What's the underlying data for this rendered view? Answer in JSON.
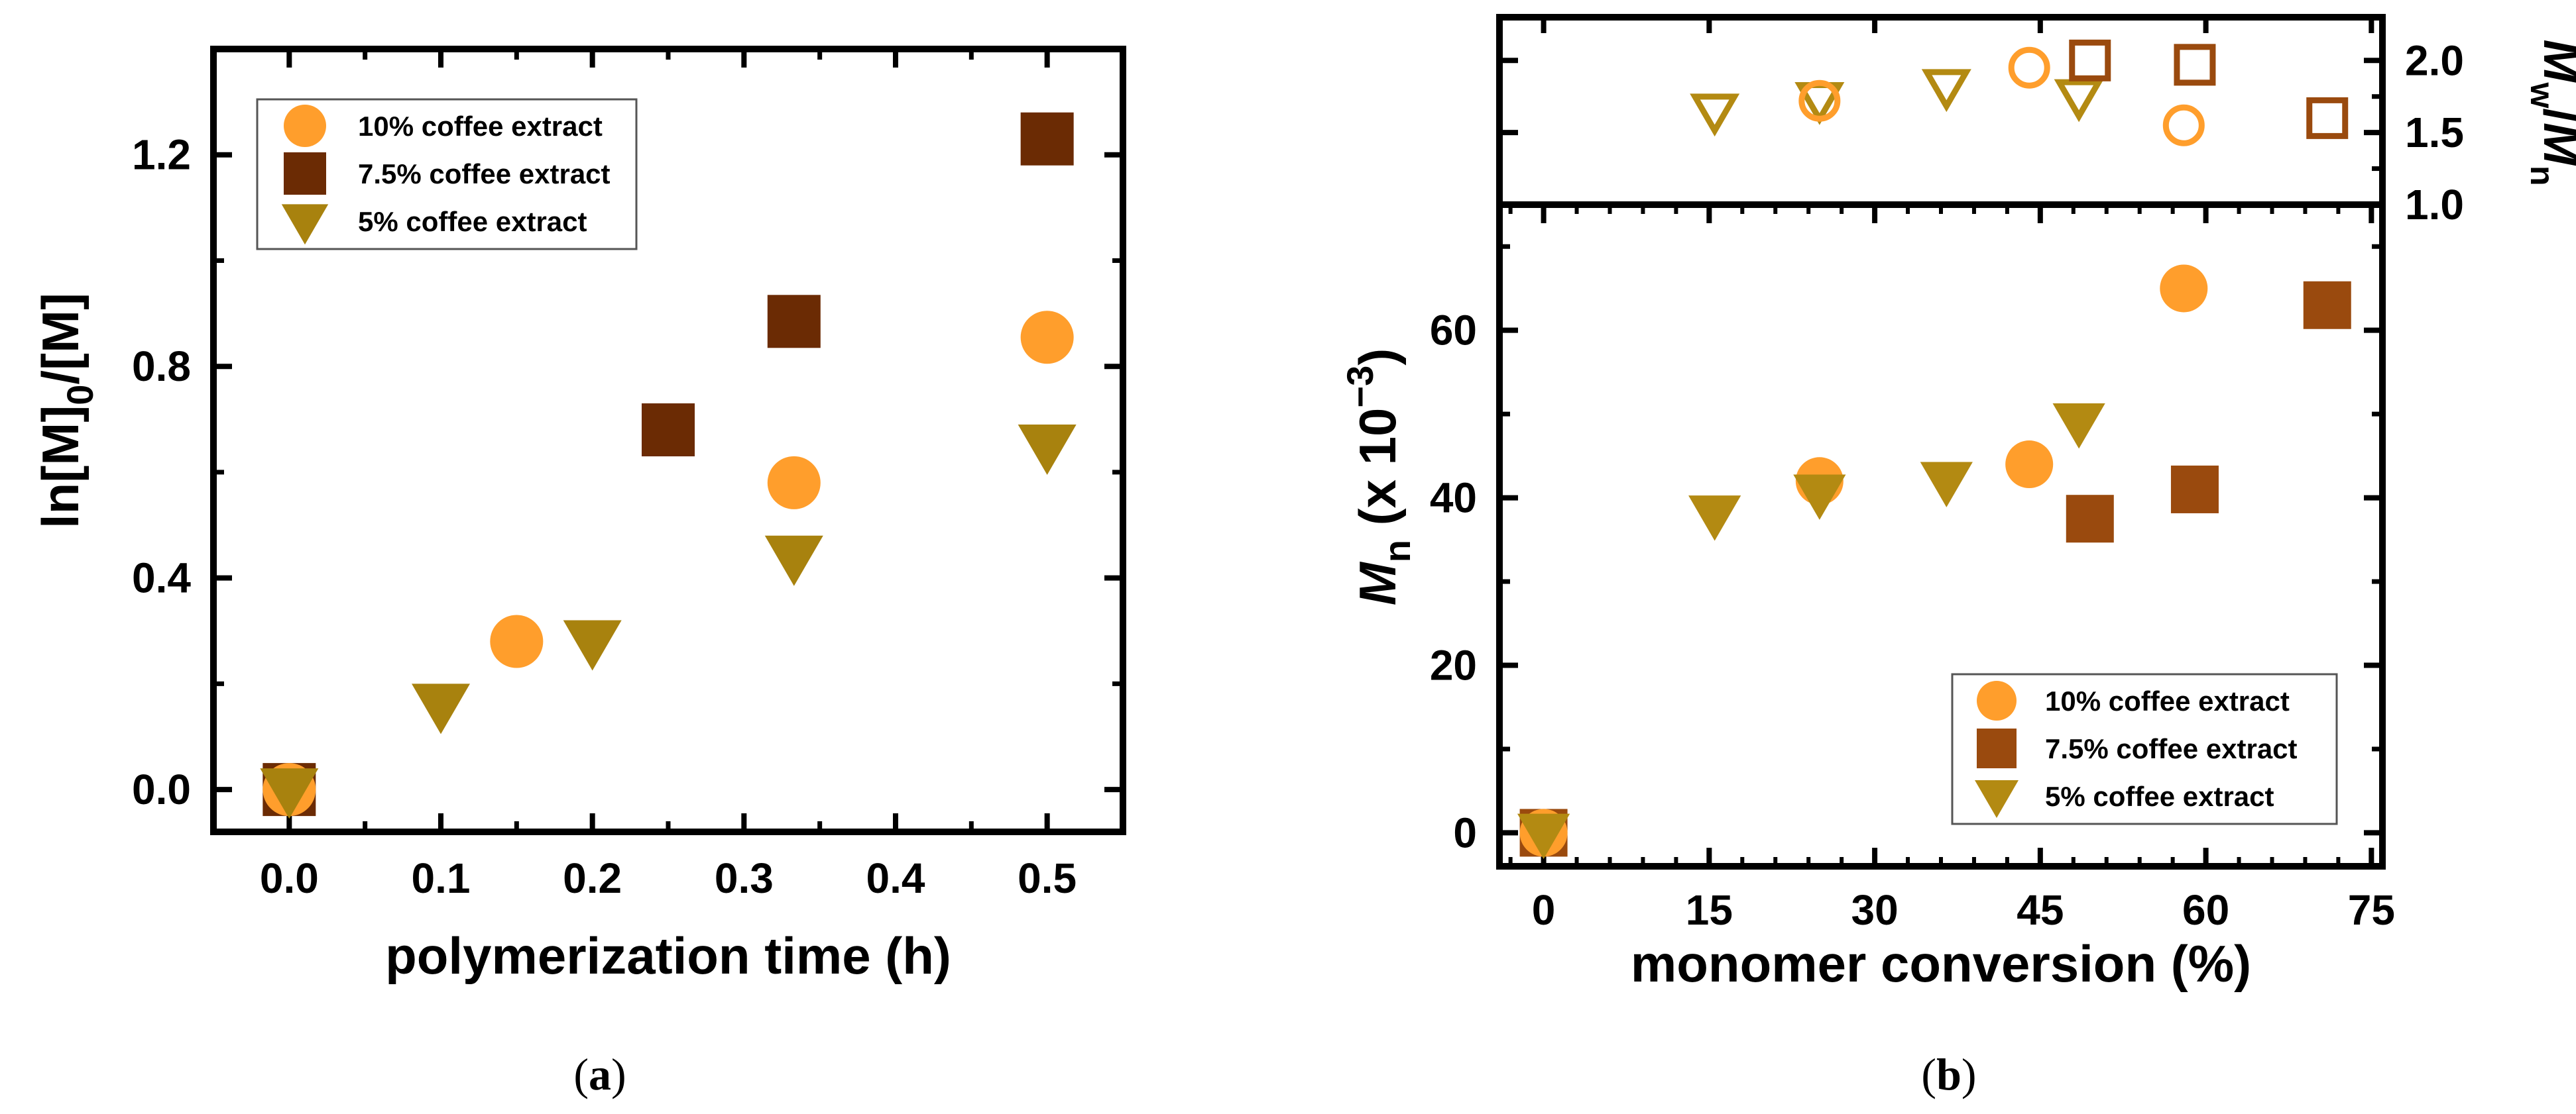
{
  "colors": {
    "ten": "#FF9E2C",
    "seven_a": "#6B2B04",
    "seven_b": "#9A4A0E",
    "five": "#A8820E",
    "five_b": "#B38A12"
  },
  "chart_data": [
    {
      "type": "scatter",
      "panel_label": "a",
      "xlabel": "polymerization time (h)",
      "ylabel_main": "ln[M]",
      "ylabel_sub": "0",
      "ylabel_tail": "/[M]",
      "xlim": [
        -0.05,
        0.55
      ],
      "ylim": [
        -0.08,
        1.4
      ],
      "xticks": [
        0.0,
        0.1,
        0.2,
        0.3,
        0.4,
        0.5
      ],
      "xtick_labels": [
        "0.0",
        "0.1",
        "0.2",
        "0.3",
        "0.4",
        "0.5"
      ],
      "yticks": [
        0.0,
        0.4,
        0.8,
        1.2
      ],
      "ytick_labels": [
        "0.0",
        "0.4",
        "0.8",
        "1.2"
      ],
      "legend": [
        "10% coffee extract",
        "7.5% coffee extract",
        "5% coffee extract"
      ],
      "series": [
        {
          "name": "10% coffee extract",
          "marker": "circle",
          "x": [
            0.0,
            0.15,
            0.333,
            0.5
          ],
          "y": [
            0.0,
            0.28,
            0.58,
            0.855
          ]
        },
        {
          "name": "7.5% coffee extract",
          "marker": "square",
          "x": [
            0.0,
            0.25,
            0.333,
            0.5
          ],
          "y": [
            0.0,
            0.68,
            0.885,
            1.23
          ]
        },
        {
          "name": "5% coffee extract",
          "marker": "triangle",
          "x": [
            0.0,
            0.1,
            0.2,
            0.333,
            0.5
          ],
          "y": [
            0.0,
            0.16,
            0.28,
            0.44,
            0.65
          ]
        }
      ]
    },
    {
      "type": "scatter",
      "panel_label": "b",
      "xlabel": "monomer conversion (%)",
      "ylabel_main": "M",
      "ylabel_sub": "n",
      "ylabel_tail": " (x 10",
      "ylabel_sup": "−3",
      "ylabel_close": ")",
      "ylabel2_m1": "M",
      "ylabel2_s1": "w",
      "ylabel2_slash": "/",
      "ylabel2_m2": "M",
      "ylabel2_s2": "n",
      "xlim": [
        -4,
        76
      ],
      "ylim": [
        -4,
        75
      ],
      "ylim_top": [
        1.0,
        2.3
      ],
      "xticks": [
        0,
        15,
        30,
        45,
        60,
        75
      ],
      "xtick_labels": [
        "0",
        "15",
        "30",
        "45",
        "60",
        "75"
      ],
      "yticks": [
        0,
        20,
        40,
        60
      ],
      "ytick_labels": [
        "0",
        "20",
        "40",
        "60"
      ],
      "yticks_top": [
        1.0,
        1.5,
        2.0
      ],
      "ytick_labels_top": [
        "1.0",
        "1.5",
        "2.0"
      ],
      "legend": [
        "10% coffee extract",
        "7.5% coffee extract",
        "5% coffee extract"
      ],
      "series_mn": [
        {
          "name": "10% coffee extract",
          "marker": "circle",
          "x": [
            0,
            25,
            44,
            58
          ],
          "y": [
            0,
            42,
            44,
            65
          ]
        },
        {
          "name": "7.5% coffee extract",
          "marker": "square",
          "x": [
            0,
            49.5,
            59,
            71
          ],
          "y": [
            0,
            37.5,
            41,
            63
          ]
        },
        {
          "name": "5% coffee extract",
          "marker": "triangle",
          "x": [
            0,
            15.5,
            25,
            36.5,
            48.5
          ],
          "y": [
            0,
            38,
            40.5,
            42,
            49
          ]
        }
      ],
      "series_pdi": [
        {
          "name": "10% coffee extract",
          "marker": "circle-open",
          "x": [
            25,
            44,
            58
          ],
          "y": [
            1.72,
            1.95,
            1.55
          ]
        },
        {
          "name": "7.5% coffee extract",
          "marker": "square-open",
          "x": [
            49.5,
            59,
            71
          ],
          "y": [
            2.0,
            1.97,
            1.6
          ]
        },
        {
          "name": "5% coffee extract",
          "marker": "triangle-open",
          "x": [
            15.5,
            25,
            36.5,
            48.5
          ],
          "y": [
            1.65,
            1.73,
            1.82,
            1.75
          ]
        }
      ]
    }
  ]
}
